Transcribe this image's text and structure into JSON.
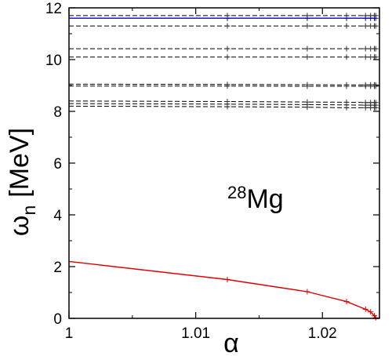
{
  "chart_data": {
    "type": "line",
    "xlabel": "α",
    "ylabel": "ωn [MeV]",
    "ylabel_main": "ω",
    "ylabel_sub": "n",
    "ylabel_unit": "[MeV]",
    "annotation": {
      "mass": "28",
      "element": "Mg"
    },
    "xlim": [
      1.0,
      1.0245
    ],
    "ylim": [
      0,
      12
    ],
    "xticks": [
      1,
      1.01,
      1.02
    ],
    "xtick_labels": [
      "1",
      "1.01",
      "1.02"
    ],
    "yticks": [
      0,
      2,
      4,
      6,
      8,
      10,
      12
    ],
    "ytick_labels": [
      "0",
      "2",
      "4",
      "6",
      "8",
      "10",
      "12"
    ],
    "grid": false,
    "legend": "none",
    "x": [
      1.0,
      1.0125,
      1.0188,
      1.0219,
      1.0234,
      1.0238,
      1.0241,
      1.0242
    ],
    "series": [
      {
        "style": "solid",
        "color": "#0000cc",
        "values": [
          11.6,
          11.6,
          11.6,
          11.6,
          11.6,
          11.6,
          11.6,
          11.6
        ]
      },
      {
        "style": "dashed",
        "color": "#000000",
        "values": [
          11.7,
          11.7,
          11.7,
          11.7,
          11.7,
          11.7,
          11.7,
          11.7
        ]
      },
      {
        "style": "dashed",
        "color": "#000000",
        "values": [
          11.3,
          11.3,
          11.3,
          11.3,
          11.3,
          11.3,
          11.3,
          11.3
        ]
      },
      {
        "style": "dashed",
        "color": "#000000",
        "values": [
          10.42,
          10.42,
          10.42,
          10.42,
          10.42,
          10.42,
          10.42,
          10.42
        ]
      },
      {
        "style": "dashed",
        "color": "#000000",
        "values": [
          10.1,
          10.1,
          10.1,
          10.1,
          10.1,
          10.1,
          10.1,
          10.1
        ]
      },
      {
        "style": "dashed",
        "color": "#000000",
        "values": [
          9.05,
          9.04,
          9.03,
          9.02,
          9.02,
          9.02,
          9.02,
          9.02
        ]
      },
      {
        "style": "dashed",
        "color": "#000000",
        "values": [
          8.98,
          8.98,
          8.97,
          8.97,
          8.97,
          8.97,
          8.97,
          8.97
        ]
      },
      {
        "style": "dashed",
        "color": "#000000",
        "values": [
          8.4,
          8.38,
          8.36,
          8.35,
          8.34,
          8.34,
          8.34,
          8.34
        ]
      },
      {
        "style": "dashed",
        "color": "#000000",
        "values": [
          8.3,
          8.28,
          8.26,
          8.25,
          8.24,
          8.24,
          8.24,
          8.24
        ]
      },
      {
        "style": "dashed",
        "color": "#000000",
        "values": [
          8.2,
          8.18,
          8.16,
          8.14,
          8.14,
          8.14,
          8.14,
          8.14
        ]
      },
      {
        "style": "solid",
        "color": "#dd0000",
        "values": [
          2.2,
          1.5,
          1.03,
          0.65,
          0.35,
          0.25,
          0.1,
          0.02
        ]
      }
    ]
  }
}
